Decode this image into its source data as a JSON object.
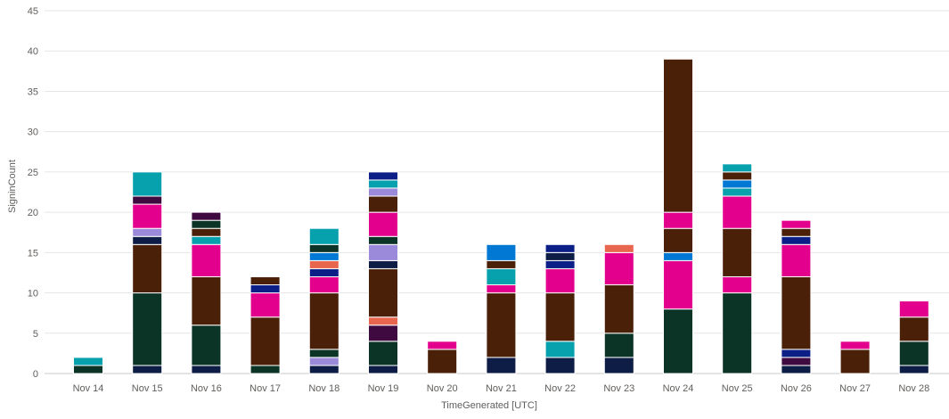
{
  "chart_data": {
    "type": "bar",
    "stacked": true,
    "xlabel": "TimeGenerated [UTC]",
    "ylabel": "SigninCount",
    "ylim": [
      0,
      45
    ],
    "yticks": [
      0,
      5,
      10,
      15,
      20,
      25,
      30,
      35,
      40,
      45
    ],
    "grid": true,
    "categories": [
      "Nov 14",
      "Nov 15",
      "Nov 16",
      "Nov 17",
      "Nov 18",
      "Nov 19",
      "Nov 20",
      "Nov 21",
      "Nov 22",
      "Nov 23",
      "Nov 24",
      "Nov 25",
      "Nov 26",
      "Nov 27",
      "Nov 28"
    ],
    "stacks": [
      [
        {
          "v": 1,
          "c": "#0b3326"
        },
        {
          "v": 1,
          "c": "#07a0ad"
        }
      ],
      [
        {
          "v": 1,
          "c": "#0d1d45"
        },
        {
          "v": 9,
          "c": "#0b3326"
        },
        {
          "v": 6,
          "c": "#4b2008"
        },
        {
          "v": 1,
          "c": "#0d1d45"
        },
        {
          "v": 1,
          "c": "#9b8ad9"
        },
        {
          "v": 3,
          "c": "#e3008c"
        },
        {
          "v": 1,
          "c": "#3f0a3f"
        },
        {
          "v": 3,
          "c": "#07a0ad"
        }
      ],
      [
        {
          "v": 1,
          "c": "#0d1d45"
        },
        {
          "v": 5,
          "c": "#0b3326"
        },
        {
          "v": 6,
          "c": "#4b2008"
        },
        {
          "v": 4,
          "c": "#e3008c"
        },
        {
          "v": 1,
          "c": "#07a0ad"
        },
        {
          "v": 1,
          "c": "#4b2008"
        },
        {
          "v": 1,
          "c": "#0b3326"
        },
        {
          "v": 1,
          "c": "#3f0a3f"
        }
      ],
      [
        {
          "v": 1,
          "c": "#0b3326"
        },
        {
          "v": 6,
          "c": "#4b2008"
        },
        {
          "v": 3,
          "c": "#e3008c"
        },
        {
          "v": 1,
          "c": "#0c1f86"
        },
        {
          "v": 1,
          "c": "#4b2008"
        }
      ],
      [
        {
          "v": 1,
          "c": "#0d1d45"
        },
        {
          "v": 1,
          "c": "#9b8ad9"
        },
        {
          "v": 1,
          "c": "#0b3326"
        },
        {
          "v": 7,
          "c": "#4b2008"
        },
        {
          "v": 2,
          "c": "#e3008c"
        },
        {
          "v": 1,
          "c": "#0c1f86"
        },
        {
          "v": 1,
          "c": "#e8664d"
        },
        {
          "v": 1,
          "c": "#0078d4"
        },
        {
          "v": 1,
          "c": "#0b3326"
        },
        {
          "v": 2,
          "c": "#07a0ad"
        }
      ],
      [
        {
          "v": 1,
          "c": "#0d1d45"
        },
        {
          "v": 3,
          "c": "#0b3326"
        },
        {
          "v": 2,
          "c": "#3f0a3f"
        },
        {
          "v": 1,
          "c": "#e8664d"
        },
        {
          "v": 6,
          "c": "#4b2008"
        },
        {
          "v": 1,
          "c": "#0d1d45"
        },
        {
          "v": 2,
          "c": "#9b8ad9"
        },
        {
          "v": 1,
          "c": "#0b3326"
        },
        {
          "v": 3,
          "c": "#e3008c"
        },
        {
          "v": 2,
          "c": "#4b2008"
        },
        {
          "v": 1,
          "c": "#9b8ad9"
        },
        {
          "v": 1,
          "c": "#07a0ad"
        },
        {
          "v": 1,
          "c": "#0c1f86"
        }
      ],
      [
        {
          "v": 3,
          "c": "#4b2008"
        },
        {
          "v": 1,
          "c": "#e3008c"
        }
      ],
      [
        {
          "v": 2,
          "c": "#0d1d45"
        },
        {
          "v": 8,
          "c": "#4b2008"
        },
        {
          "v": 1,
          "c": "#e3008c"
        },
        {
          "v": 2,
          "c": "#07a0ad"
        },
        {
          "v": 1,
          "c": "#4b2008"
        },
        {
          "v": 2,
          "c": "#0078d4"
        }
      ],
      [
        {
          "v": 2,
          "c": "#0d1d45"
        },
        {
          "v": 2,
          "c": "#07a0ad"
        },
        {
          "v": 6,
          "c": "#4b2008"
        },
        {
          "v": 3,
          "c": "#e3008c"
        },
        {
          "v": 1,
          "c": "#0c1f86"
        },
        {
          "v": 1,
          "c": "#0d1d45"
        },
        {
          "v": 1,
          "c": "#0c1f86"
        }
      ],
      [
        {
          "v": 2,
          "c": "#0d1d45"
        },
        {
          "v": 3,
          "c": "#0b3326"
        },
        {
          "v": 6,
          "c": "#4b2008"
        },
        {
          "v": 4,
          "c": "#e3008c"
        },
        {
          "v": 1,
          "c": "#e8664d"
        }
      ],
      [
        {
          "v": 8,
          "c": "#0b3326"
        },
        {
          "v": 6,
          "c": "#e3008c"
        },
        {
          "v": 1,
          "c": "#0078d4"
        },
        {
          "v": 3,
          "c": "#4b2008"
        },
        {
          "v": 2,
          "c": "#e3008c"
        },
        {
          "v": 19,
          "c": "#4b2008"
        }
      ],
      [
        {
          "v": 10,
          "c": "#0b3326"
        },
        {
          "v": 2,
          "c": "#e3008c"
        },
        {
          "v": 6,
          "c": "#4b2008"
        },
        {
          "v": 4,
          "c": "#e3008c"
        },
        {
          "v": 1,
          "c": "#07a0ad"
        },
        {
          "v": 1,
          "c": "#0078d4"
        },
        {
          "v": 1,
          "c": "#4b2008"
        },
        {
          "v": 1,
          "c": "#07a0ad"
        }
      ],
      [
        {
          "v": 1,
          "c": "#0d1d45"
        },
        {
          "v": 1,
          "c": "#3f0a3f"
        },
        {
          "v": 1,
          "c": "#0c1f86"
        },
        {
          "v": 9,
          "c": "#4b2008"
        },
        {
          "v": 4,
          "c": "#e3008c"
        },
        {
          "v": 1,
          "c": "#0c1f86"
        },
        {
          "v": 1,
          "c": "#4b2008"
        },
        {
          "v": 1,
          "c": "#e3008c"
        }
      ],
      [
        {
          "v": 3,
          "c": "#4b2008"
        },
        {
          "v": 1,
          "c": "#e3008c"
        }
      ],
      [
        {
          "v": 1,
          "c": "#0d1d45"
        },
        {
          "v": 3,
          "c": "#0b3326"
        },
        {
          "v": 3,
          "c": "#4b2008"
        },
        {
          "v": 2,
          "c": "#e3008c"
        }
      ]
    ],
    "totals": [
      2,
      25,
      20,
      12,
      18,
      25,
      4,
      16,
      16,
      16,
      39,
      26,
      19,
      4,
      9
    ]
  }
}
